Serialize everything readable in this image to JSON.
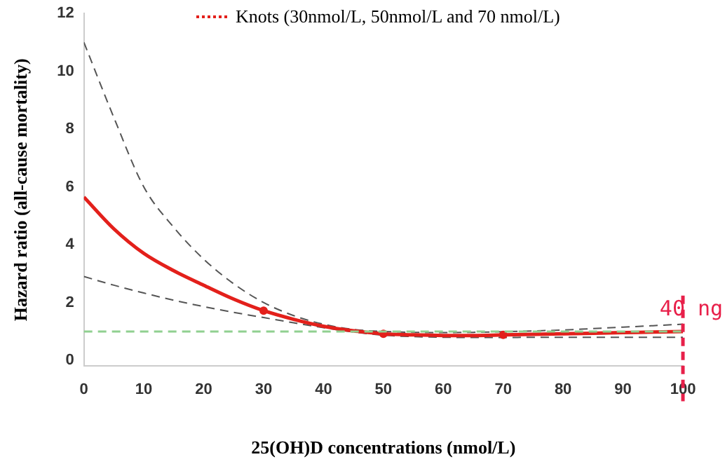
{
  "chart_data": {
    "type": "line",
    "xlabel": "25(OH)D concentrations (nmol/L)",
    "ylabel": "Hazard ratio (all-cause mortality)",
    "x": [
      0,
      5,
      10,
      15,
      20,
      25,
      30,
      35,
      40,
      45,
      50,
      55,
      60,
      65,
      70,
      75,
      80,
      85,
      90,
      95,
      100
    ],
    "xlim": [
      0,
      100
    ],
    "xticks": [
      0,
      10,
      20,
      30,
      40,
      50,
      60,
      70,
      80,
      90,
      100
    ],
    "ylim": [
      -0.2,
      12
    ],
    "yticks": [
      0,
      2,
      4,
      6,
      8,
      10,
      12
    ],
    "grid": false,
    "legend": "top",
    "tick_labels": "xy",
    "series": [
      {
        "color": "#e3201b",
        "line_style": "solid",
        "values": [
          5.65,
          4.55,
          3.7,
          3.1,
          2.6,
          2.12,
          1.72,
          1.42,
          1.18,
          1.02,
          0.92,
          0.88,
          0.86,
          0.86,
          0.88,
          0.9,
          0.92,
          0.94,
          0.96,
          0.98,
          1.0
        ]
      },
      {
        "color": "#555555",
        "line_style": "dashed",
        "values": [
          11.0,
          8.4,
          6.0,
          4.6,
          3.5,
          2.65,
          2.0,
          1.55,
          1.25,
          1.07,
          1.0,
          0.97,
          0.96,
          0.97,
          0.99,
          1.02,
          1.05,
          1.1,
          1.15,
          1.2,
          1.25
        ]
      },
      {
        "color": "#555555",
        "line_style": "dashed",
        "values": [
          2.9,
          2.6,
          2.33,
          2.08,
          1.86,
          1.66,
          1.48,
          1.3,
          1.13,
          0.98,
          0.87,
          0.82,
          0.8,
          0.79,
          0.79,
          0.8,
          0.8,
          0.8,
          0.8,
          0.8,
          0.8
        ]
      },
      {
        "type": "scatter",
        "name": "Knots (30nmol/L, 50nmol/L and 70 nmol/L)",
        "color": "#e3201b",
        "marker": "circle",
        "x": [
          30,
          50,
          70
        ],
        "values": [
          1.72,
          0.92,
          0.88
        ]
      }
    ],
    "ref_lines": [
      {
        "axis": "y",
        "value": 1,
        "color": "#90d090",
        "line_style": "dashed"
      },
      {
        "axis": "x",
        "value": 100,
        "label": "40 ng",
        "color": "#e8204a",
        "line_style": "dashed"
      }
    ]
  }
}
